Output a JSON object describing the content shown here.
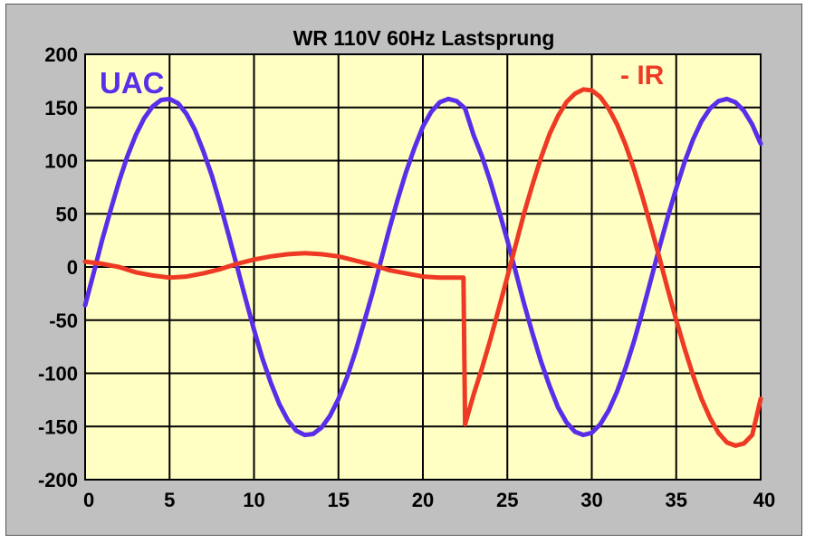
{
  "chart_data": {
    "type": "line",
    "title": "WR 110V  60Hz  Lastsprung",
    "xlabel": "",
    "ylabel": "",
    "xlim": [
      0,
      40
    ],
    "ylim": [
      -200,
      200
    ],
    "xticks": [
      "0",
      "5",
      "10",
      "15",
      "20",
      "25",
      "30",
      "35",
      "40"
    ],
    "yticks": [
      "200",
      "150",
      "100",
      "50",
      "0",
      "-50",
      "-100",
      "-150",
      "-200"
    ],
    "grid": true,
    "series": [
      {
        "name": "UAC",
        "color": "#5a2ee8",
        "points": [
          [
            0,
            -36
          ],
          [
            0.5,
            -6
          ],
          [
            1,
            25
          ],
          [
            1.5,
            53
          ],
          [
            2,
            80
          ],
          [
            2.5,
            104
          ],
          [
            3,
            124
          ],
          [
            3.5,
            140
          ],
          [
            4,
            151
          ],
          [
            4.5,
            157
          ],
          [
            5,
            158
          ],
          [
            5.5,
            154
          ],
          [
            6,
            144
          ],
          [
            6.5,
            129
          ],
          [
            7,
            109
          ],
          [
            7.5,
            86
          ],
          [
            8,
            59
          ],
          [
            8.5,
            30
          ],
          [
            9,
            0
          ],
          [
            9.5,
            -30
          ],
          [
            10,
            -59
          ],
          [
            10.5,
            -86
          ],
          [
            11,
            -109
          ],
          [
            11.5,
            -129
          ],
          [
            12,
            -144
          ],
          [
            12.5,
            -154
          ],
          [
            13,
            -158
          ],
          [
            13.5,
            -157
          ],
          [
            14,
            -151
          ],
          [
            14.5,
            -140
          ],
          [
            15,
            -124
          ],
          [
            15.5,
            -104
          ],
          [
            16,
            -80
          ],
          [
            16.5,
            -53
          ],
          [
            17,
            -25
          ],
          [
            17.5,
            5
          ],
          [
            18,
            35
          ],
          [
            18.5,
            63
          ],
          [
            19,
            89
          ],
          [
            19.5,
            112
          ],
          [
            20,
            132
          ],
          [
            20.5,
            146
          ],
          [
            21,
            155
          ],
          [
            21.5,
            158
          ],
          [
            22,
            156
          ],
          [
            22.5,
            149
          ],
          [
            23,
            124
          ],
          [
            23.5,
            104
          ],
          [
            24,
            80
          ],
          [
            24.5,
            53
          ],
          [
            25,
            25
          ],
          [
            25.5,
            -5
          ],
          [
            26,
            -35
          ],
          [
            26.5,
            -63
          ],
          [
            27,
            -89
          ],
          [
            27.5,
            -112
          ],
          [
            28,
            -132
          ],
          [
            28.5,
            -146
          ],
          [
            29,
            -155
          ],
          [
            29.5,
            -158
          ],
          [
            30,
            -156
          ],
          [
            30.5,
            -148
          ],
          [
            31,
            -135
          ],
          [
            31.5,
            -117
          ],
          [
            32,
            -95
          ],
          [
            32.5,
            -70
          ],
          [
            33,
            -42
          ],
          [
            33.5,
            -12
          ],
          [
            34,
            18
          ],
          [
            34.5,
            47
          ],
          [
            35,
            74
          ],
          [
            35.5,
            99
          ],
          [
            36,
            120
          ],
          [
            36.5,
            137
          ],
          [
            37,
            149
          ],
          [
            37.5,
            156
          ],
          [
            38,
            158
          ],
          [
            38.5,
            155
          ],
          [
            39,
            147
          ],
          [
            39.5,
            134
          ],
          [
            40,
            116
          ]
        ]
      },
      {
        "name": "- IR",
        "color": "#ee3a25",
        "points": [
          [
            0,
            5
          ],
          [
            1,
            3
          ],
          [
            2,
            0
          ],
          [
            3,
            -5
          ],
          [
            4,
            -8
          ],
          [
            5,
            -10
          ],
          [
            6,
            -9
          ],
          [
            7,
            -6
          ],
          [
            8,
            -2
          ],
          [
            9,
            3
          ],
          [
            10,
            7
          ],
          [
            11,
            10
          ],
          [
            12,
            12
          ],
          [
            13,
            13
          ],
          [
            14,
            12
          ],
          [
            15,
            10
          ],
          [
            16,
            6
          ],
          [
            17,
            2
          ],
          [
            18,
            -3
          ],
          [
            19,
            -6
          ],
          [
            20,
            -9
          ],
          [
            21,
            -10
          ],
          [
            22,
            -10
          ],
          [
            22.4,
            -10
          ],
          [
            22.5,
            -148
          ],
          [
            23,
            -120
          ],
          [
            23.5,
            -95
          ],
          [
            24,
            -68
          ],
          [
            24.5,
            -39
          ],
          [
            25,
            -9
          ],
          [
            25.5,
            21
          ],
          [
            26,
            51
          ],
          [
            26.5,
            78
          ],
          [
            27,
            103
          ],
          [
            27.5,
            125
          ],
          [
            28,
            142
          ],
          [
            28.5,
            155
          ],
          [
            29,
            163
          ],
          [
            29.5,
            167
          ],
          [
            30,
            166
          ],
          [
            30.5,
            160
          ],
          [
            31,
            149
          ],
          [
            31.5,
            134
          ],
          [
            32,
            115
          ],
          [
            32.5,
            92
          ],
          [
            33,
            66
          ],
          [
            33.5,
            38
          ],
          [
            34,
            9
          ],
          [
            34.5,
            -21
          ],
          [
            35,
            -50
          ],
          [
            35.5,
            -77
          ],
          [
            36,
            -102
          ],
          [
            36.5,
            -124
          ],
          [
            37,
            -142
          ],
          [
            37.5,
            -156
          ],
          [
            38,
            -165
          ],
          [
            38.5,
            -168
          ],
          [
            39,
            -166
          ],
          [
            39.5,
            -158
          ],
          [
            40,
            -124
          ]
        ]
      }
    ],
    "legend": "inline labels: top-left (UAC), top-right (- IR)"
  }
}
